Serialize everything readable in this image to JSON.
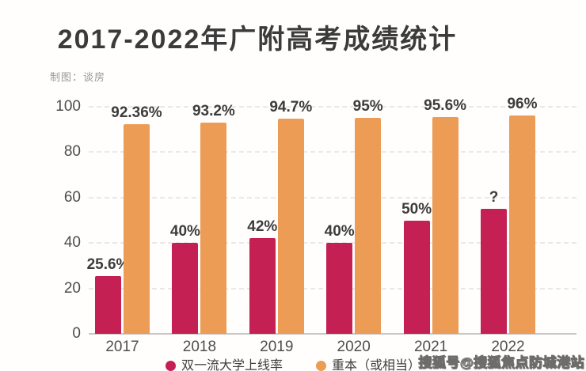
{
  "title": "2017-2022年广附高考成绩统计",
  "author": "制图：谈房",
  "watermark": "搜狐号@搜狐焦点防城港站",
  "colors": {
    "pink": "#c52053",
    "orange": "#ec9c55",
    "title_text": "#3b3b3b",
    "grid": "#e8e5e2"
  },
  "chart_data": {
    "type": "bar",
    "title": "2017-2022年广附高考成绩统计",
    "categories": [
      "2017",
      "2018",
      "2019",
      "2020",
      "2021",
      "2022"
    ],
    "series": [
      {
        "name": "双一流大学上线率",
        "color_key": "pink",
        "values": [
          25.6,
          40,
          42,
          40,
          50,
          null
        ],
        "draw_values": [
          25.6,
          40,
          42,
          40,
          50,
          55
        ],
        "labels": [
          "25.6%",
          "40%",
          "42%",
          "40%",
          "50%",
          "?"
        ],
        "note": "2022 value shown as ? ; bar drawn at about 55"
      },
      {
        "name": "重本（或相当）",
        "color_key": "orange",
        "values": [
          92.36,
          93.2,
          94.7,
          95,
          95.6,
          96
        ],
        "labels": [
          "92.36%",
          "93.2%",
          "94.7%",
          "95%",
          "95.6%",
          "96%"
        ]
      }
    ],
    "ylim": [
      0,
      100
    ],
    "yticks": [
      0,
      20,
      40,
      60,
      80,
      100
    ],
    "ytick_labels": [
      "0",
      "20",
      "40",
      "60",
      "80",
      "100"
    ],
    "xlabel": "",
    "ylabel": "",
    "grid": "dashed-horizontal",
    "legend_position": "bottom-center"
  }
}
